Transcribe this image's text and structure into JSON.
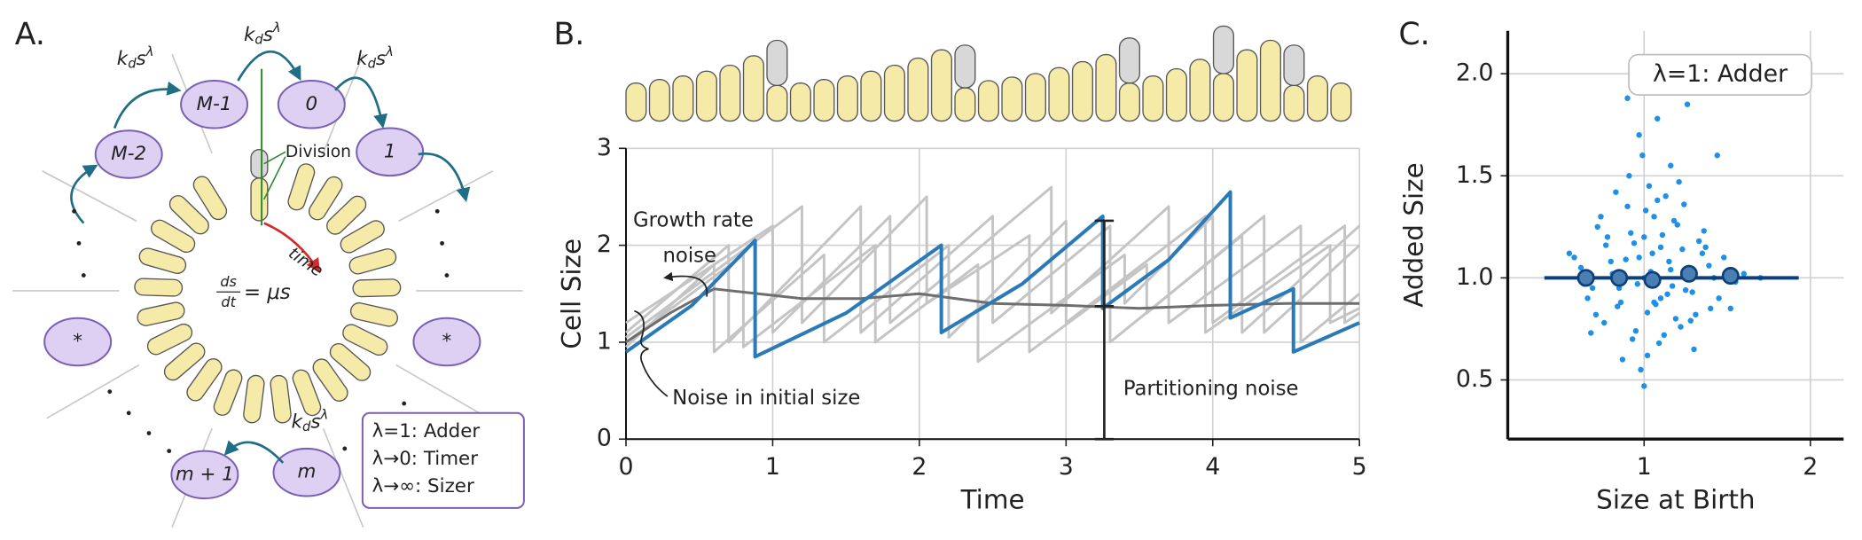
{
  "diagram": {
    "label": "A.",
    "rate": [
      "k",
      "d",
      "s",
      "λ"
    ],
    "nodes": [
      "M-1",
      "0",
      "1",
      "M-2",
      "*",
      "*",
      "m + 1",
      "m"
    ],
    "division": "Division",
    "time": "time",
    "equation": {
      "num": "ds",
      "den": "dt",
      "rhs": "= μs"
    },
    "legend": [
      "λ=1: Adder",
      "λ→0: Timer",
      "λ→∞: Sizer"
    ]
  },
  "chart_data": [
    {
      "type": "line",
      "panel": "B.",
      "xlabel": "Time",
      "ylabel": "Cell Size",
      "xlim": [
        0,
        5
      ],
      "ylim": [
        0,
        3
      ],
      "xticks": [
        0,
        1,
        2,
        3,
        4,
        5
      ],
      "yticks": [
        0,
        1,
        2,
        3
      ],
      "grid": true,
      "annotations": [
        "Growth rate",
        "noise",
        "Noise in initial size",
        "Partitioning noise"
      ],
      "series": [
        {
          "color": "#c4c4c4",
          "x": [
            0,
            0.7,
            0.7,
            1.6,
            1.6,
            2.5,
            2.5,
            3.3,
            3.3,
            4.2,
            4.2,
            5
          ],
          "values": [
            1.1,
            2.0,
            1.0,
            2.4,
            1.1,
            2.3,
            1.2,
            2.2,
            1.0,
            2.1,
            1.1,
            2.2
          ]
        },
        {
          "color": "#c4c4c4",
          "x": [
            0,
            1.0,
            1.0,
            1.8,
            1.8,
            2.9,
            2.9,
            3.7,
            3.7,
            4.6,
            4.6,
            5
          ],
          "values": [
            1.2,
            2.2,
            1.1,
            2.3,
            1.2,
            2.6,
            1.3,
            2.4,
            1.2,
            2.2,
            1.0,
            1.5
          ]
        },
        {
          "color": "#c4c4c4",
          "x": [
            0,
            0.6,
            0.6,
            1.35,
            1.35,
            2.2,
            2.2,
            3.0,
            3.0,
            3.95,
            3.95,
            4.8,
            4.8,
            5
          ],
          "values": [
            0.95,
            1.8,
            0.9,
            1.9,
            1.0,
            2.0,
            1.05,
            2.25,
            1.2,
            2.3,
            1.1,
            2.0,
            1.2,
            1.35
          ]
        },
        {
          "color": "#c4c4c4",
          "x": [
            0,
            1.2,
            1.2,
            2.05,
            2.05,
            2.75,
            2.75,
            3.55,
            3.55,
            4.35,
            4.35,
            5
          ],
          "values": [
            1.05,
            2.4,
            1.2,
            2.5,
            1.4,
            2.1,
            0.9,
            1.8,
            1.3,
            2.3,
            1.1,
            2.0
          ]
        },
        {
          "color": "#c4c4c4",
          "x": [
            0,
            0.8,
            0.8,
            1.7,
            1.7,
            2.4,
            2.4,
            3.4,
            3.4,
            4.0,
            4.0,
            4.9,
            4.9,
            5
          ],
          "values": [
            1.0,
            1.9,
            0.95,
            2.0,
            1.0,
            1.8,
            0.8,
            1.9,
            1.4,
            2.3,
            1.2,
            2.2,
            1.2,
            1.3
          ]
        },
        {
          "color": "#6e6e6e",
          "x": [
            0,
            0.3,
            0.6,
            0.9,
            1.2,
            1.6,
            2,
            2.5,
            3,
            3.5,
            4,
            4.5,
            5
          ],
          "values": [
            1.0,
            1.3,
            1.55,
            1.5,
            1.45,
            1.45,
            1.5,
            1.4,
            1.38,
            1.35,
            1.38,
            1.4,
            1.4
          ]
        },
        {
          "color": "#2a7ab8",
          "x": [
            0,
            0.45,
            0.88,
            0.88,
            1.5,
            2.15,
            2.15,
            2.7,
            3.25,
            3.25,
            3.7,
            4.12,
            4.12,
            4.55,
            4.55,
            5
          ],
          "values": [
            0.9,
            1.38,
            2.05,
            0.85,
            1.3,
            2.0,
            1.1,
            1.6,
            2.3,
            1.35,
            1.85,
            2.55,
            1.25,
            1.55,
            0.9,
            1.2
          ]
        }
      ]
    },
    {
      "type": "scatter",
      "panel": "C.",
      "xlabel": "Size at Birth",
      "ylabel": "Added Size",
      "xlim": [
        0.18,
        2.2
      ],
      "ylim": [
        0.21,
        2.21
      ],
      "xticks": [
        1,
        2
      ],
      "yticks": [
        0.5,
        {
          "value": 1,
          "label": "1.0"
        },
        1.5,
        {
          "value": 2,
          "label": "2.0"
        }
      ],
      "grid": true,
      "annotation": "λ=1: Adder",
      "hline": {
        "value": 1,
        "xmin": 0.4,
        "xmax": 1.93,
        "color": "#0d3f78"
      },
      "series": [
        {
          "color": "#1e90e8",
          "x": [
            0.62,
            0.71,
            0.78,
            0.85,
            0.9,
            0.93,
            0.97,
            1.0,
            1.03,
            1.06,
            1.1,
            1.14,
            1.18,
            1.22,
            1.27,
            1.33,
            1.4,
            1.48,
            1.55,
            0.66,
            0.74,
            0.81,
            0.87,
            0.92,
            0.96,
            0.99,
            1.02,
            1.05,
            1.08,
            1.12,
            1.16,
            1.2,
            1.25,
            1.3,
            1.37,
            1.45,
            1.6,
            0.58,
            0.69,
            0.76,
            0.83,
            0.88,
            0.94,
            0.98,
            1.01,
            1.04,
            1.07,
            1.11,
            1.15,
            1.19,
            1.24,
            1.29,
            1.35,
            1.42,
            1.52,
            0.72,
            0.8,
            0.86,
            0.91,
            0.95,
            1.0,
            1.04,
            1.09,
            1.13,
            1.17,
            1.23,
            1.31,
            1.39,
            0.64,
            0.77,
            0.84,
            0.89,
            0.97,
            1.02,
            1.06,
            1.1,
            1.21,
            1.28,
            1.36,
            1.7,
            0.55,
            0.68,
            0.9,
            1.0,
            1.08,
            1.16,
            1.26,
            1.44
          ],
          "values": [
            1.05,
            0.82,
            1.2,
            0.95,
            1.35,
            0.7,
            1.1,
            1.0,
            1.45,
            0.88,
            1.15,
            0.92,
            1.28,
            0.76,
            1.05,
            1.18,
            0.85,
            1.1,
            0.98,
            0.9,
            1.3,
            1.02,
            0.6,
            1.22,
            0.97,
            1.6,
            0.83,
            1.12,
            1.38,
            0.72,
            1.04,
            1.26,
            0.94,
            0.65,
            1.15,
            0.9,
            1.02,
            1.1,
            0.95,
            0.78,
            1.42,
            1.0,
            1.17,
            0.55,
            1.33,
            0.99,
            0.87,
            1.21,
            1.08,
            0.8,
            1.36,
            0.93,
            1.12,
            1.0,
            0.85,
            1.25,
            1.08,
            0.88,
            1.5,
            0.74,
            1.2,
            1.03,
            0.68,
            1.4,
            0.96,
            1.14,
            0.82,
            1.06,
            0.97,
            1.16,
            0.86,
            1.09,
            1.7,
            0.62,
            1.3,
            0.9,
            1.47,
            0.79,
            1.23,
            1.0,
            1.12,
            0.73,
            1.88,
            0.47,
            1.78,
            1.55,
            1.85,
            1.6
          ]
        },
        {
          "color": "#4a7fb3",
          "x": [
            0.65,
            0.85,
            1.05,
            1.27,
            1.52
          ],
          "values": [
            1.0,
            1.0,
            0.99,
            1.02,
            1.01
          ]
        }
      ]
    }
  ]
}
